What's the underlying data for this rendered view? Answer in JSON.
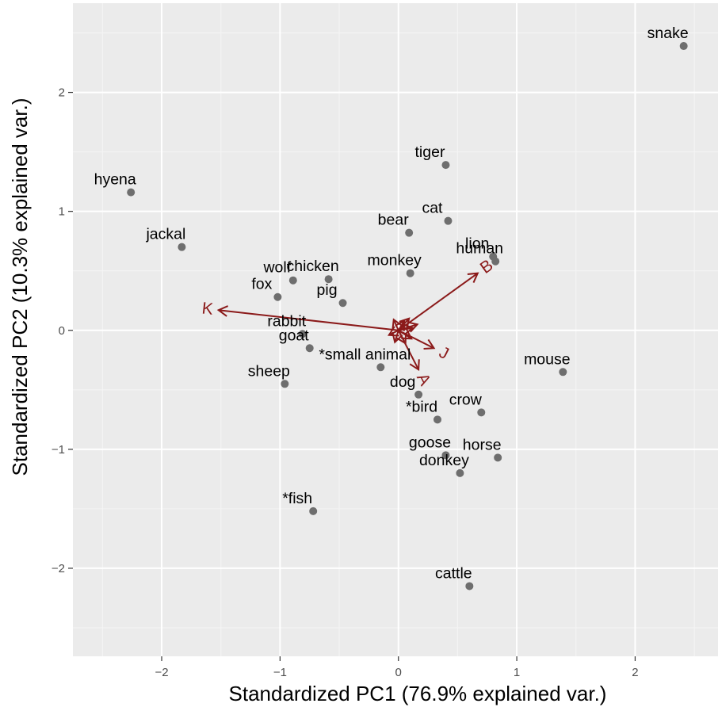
{
  "chart_data": {
    "type": "scatter",
    "title": "",
    "xlabel": "Standardized PC1 (76.9% explained var.)",
    "ylabel": "Standardized PC2 (10.3% explained var.)",
    "xlim": [
      -2.75,
      2.7
    ],
    "ylim": [
      -2.74,
      2.75
    ],
    "xticks": [
      -2,
      -1,
      0,
      1,
      2
    ],
    "yticks": [
      -2,
      -1,
      0,
      1,
      2
    ],
    "xtick_labels": [
      "−2",
      "−1",
      "0",
      "1",
      "2"
    ],
    "ytick_labels": [
      "−2",
      "−1",
      "0",
      "1",
      "2"
    ],
    "grid": true,
    "legend": "none",
    "colors": {
      "panel": "#ebebeb",
      "grid_major": "#ffffff",
      "point": "#6e6e6e",
      "arrow": "#8b1a1a",
      "text": "#000000",
      "tick_text": "#4d4d4d"
    },
    "points": [
      {
        "label": "snake",
        "x": 2.41,
        "y": 2.39
      },
      {
        "label": "tiger",
        "x": 0.4,
        "y": 1.39
      },
      {
        "label": "hyena",
        "x": -2.26,
        "y": 1.16
      },
      {
        "label": "cat",
        "x": 0.42,
        "y": 0.92
      },
      {
        "label": "bear",
        "x": 0.09,
        "y": 0.82
      },
      {
        "label": "jackal",
        "x": -1.83,
        "y": 0.7
      },
      {
        "label": "lion",
        "x": 0.8,
        "y": 0.62
      },
      {
        "label": "human",
        "x": 0.82,
        "y": 0.58
      },
      {
        "label": "monkey",
        "x": 0.1,
        "y": 0.48
      },
      {
        "label": "chicken",
        "x": -0.59,
        "y": 0.43
      },
      {
        "label": "wolf",
        "x": -0.89,
        "y": 0.42
      },
      {
        "label": "fox",
        "x": -1.02,
        "y": 0.28
      },
      {
        "label": "pig",
        "x": -0.47,
        "y": 0.23
      },
      {
        "label": "rabbit",
        "x": -0.81,
        "y": -0.03
      },
      {
        "label": "goat",
        "x": -0.75,
        "y": -0.15
      },
      {
        "label": "*small animal",
        "x": -0.15,
        "y": -0.31
      },
      {
        "label": "mouse",
        "x": 1.39,
        "y": -0.35
      },
      {
        "label": "sheep",
        "x": -0.96,
        "y": -0.45
      },
      {
        "label": "dog",
        "x": 0.17,
        "y": -0.54
      },
      {
        "label": "crow",
        "x": 0.7,
        "y": -0.69
      },
      {
        "label": "*bird",
        "x": 0.33,
        "y": -0.75
      },
      {
        "label": "goose",
        "x": 0.4,
        "y": -1.05
      },
      {
        "label": "horse",
        "x": 0.84,
        "y": -1.07
      },
      {
        "label": "donkey",
        "x": 0.52,
        "y": -1.2
      },
      {
        "label": "*fish",
        "x": -0.72,
        "y": -1.52
      },
      {
        "label": "cattle",
        "x": 0.6,
        "y": -2.15
      }
    ],
    "loadings": [
      {
        "label": "K",
        "x": -1.52,
        "y": 0.17
      },
      {
        "label": "B",
        "x": 0.67,
        "y": 0.48
      },
      {
        "label": "J",
        "x": 0.3,
        "y": -0.15
      },
      {
        "label": "A",
        "x": 0.17,
        "y": -0.33
      },
      {
        "label": "",
        "x": 0.16,
        "y": 0.05
      },
      {
        "label": "",
        "x": 0.09,
        "y": 0.1
      },
      {
        "label": "",
        "x": 0.05,
        "y": 0.08
      },
      {
        "label": "",
        "x": 0.12,
        "y": 0.02
      },
      {
        "label": "",
        "x": 0.11,
        "y": -0.07
      },
      {
        "label": "",
        "x": 0.06,
        "y": -0.11
      },
      {
        "label": "",
        "x": -0.04,
        "y": 0.09
      },
      {
        "label": "",
        "x": -0.08,
        "y": -0.04
      },
      {
        "label": "",
        "x": -0.03,
        "y": -0.1
      }
    ]
  }
}
